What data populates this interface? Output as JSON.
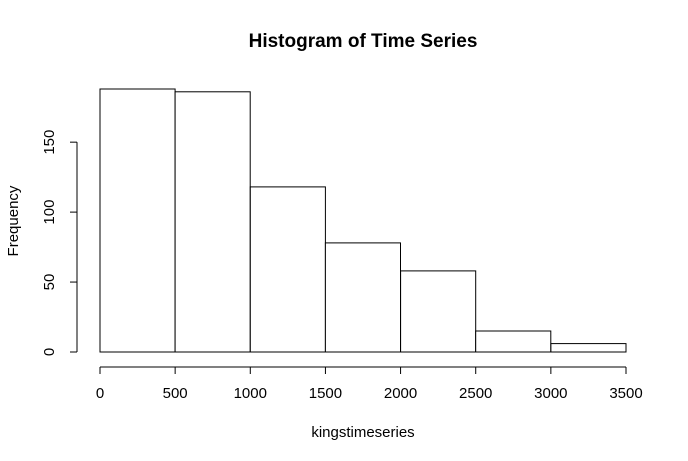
{
  "chart_data": {
    "type": "bar",
    "subtype": "histogram",
    "title": "Histogram of Time Series",
    "xlabel": "kingstimeseries",
    "ylabel": "Frequency",
    "bins": [
      {
        "start": 0,
        "end": 500,
        "count": 188
      },
      {
        "start": 500,
        "end": 1000,
        "count": 186
      },
      {
        "start": 1000,
        "end": 1500,
        "count": 118
      },
      {
        "start": 1500,
        "end": 2000,
        "count": 78
      },
      {
        "start": 2000,
        "end": 2500,
        "count": 58
      },
      {
        "start": 2500,
        "end": 3000,
        "count": 15
      },
      {
        "start": 3000,
        "end": 3500,
        "count": 6
      }
    ],
    "xlim": [
      0,
      3500
    ],
    "ylim": [
      0,
      188
    ],
    "x_ticks": [
      0,
      500,
      1000,
      1500,
      2000,
      2500,
      3000,
      3500
    ],
    "y_ticks": [
      0,
      50,
      100,
      150
    ],
    "grid": false,
    "bar_fill": "#ffffff",
    "bar_stroke": "#000000"
  }
}
